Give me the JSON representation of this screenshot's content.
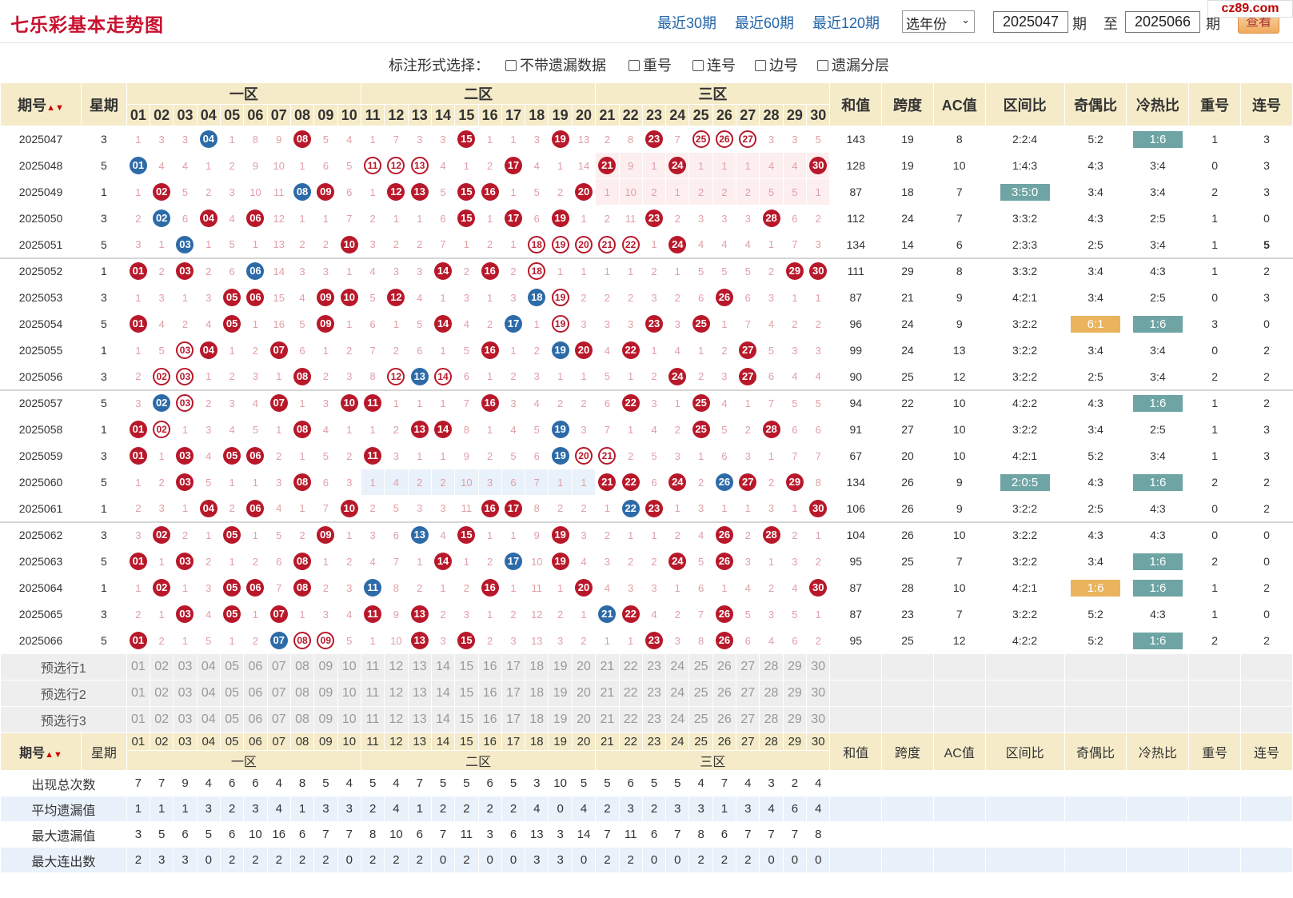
{
  "header": {
    "title": "七乐彩基本走势图",
    "links": [
      "最近30期",
      "最近60期",
      "最近120期"
    ],
    "year_select": "选年份",
    "from_value": "2025047",
    "from_unit": "期",
    "to_label": "至",
    "to_value": "2025066",
    "to_unit": "期",
    "query_button": "查看",
    "watermark": "cz89.com"
  },
  "options": {
    "label": "标注形式选择：",
    "items": [
      "不带遗漏数据",
      "重号",
      "连号",
      "边号",
      "遗漏分层"
    ]
  },
  "table": {
    "headers": {
      "issue": "期号",
      "weekday": "星期",
      "zones": [
        "一区",
        "二区",
        "三区"
      ],
      "sum": "和值",
      "span": "跨度",
      "ac": "AC值",
      "zone_ratio": "区间比",
      "odd_even": "奇偶比",
      "cold_hot": "冷热比",
      "repeat": "重号",
      "consecutive": "连号"
    },
    "numbers": [
      "01",
      "02",
      "03",
      "04",
      "05",
      "06",
      "07",
      "08",
      "09",
      "10",
      "11",
      "12",
      "13",
      "14",
      "15",
      "16",
      "17",
      "18",
      "19",
      "20",
      "21",
      "22",
      "23",
      "24",
      "25",
      "26",
      "27",
      "28",
      "29",
      "30"
    ],
    "rows": [
      {
        "issue": "2025047",
        "wd": "3",
        "cells": [
          "1",
          "3",
          "3",
          "B04",
          "1",
          "8",
          "9",
          "R08",
          "5",
          "4",
          "1",
          "7",
          "3",
          "3",
          "R15",
          "1",
          "1",
          "3",
          "R19",
          "13",
          "2",
          "8",
          "R23",
          "7",
          "O25",
          "O26",
          "O27",
          "3",
          "3",
          "5"
        ],
        "sum": "143",
        "span": "19",
        "ac": "8",
        "zr": "2:2:4",
        "oe": "5:2",
        "ch": "1:6",
        "ch_tag": "teal",
        "rep": "1",
        "con": "3"
      },
      {
        "issue": "2025048",
        "wd": "5",
        "cells": [
          "B01",
          "4",
          "4",
          "1",
          "2",
          "9",
          "10",
          "1",
          "6",
          "5",
          "O11",
          "O12",
          "O13",
          "4",
          "1",
          "2",
          "R17",
          "4",
          "1",
          "14",
          "R21",
          "9",
          "1",
          "R24",
          "1",
          "1",
          "1",
          "4",
          "4",
          "R30"
        ],
        "sum": "128",
        "span": "19",
        "ac": "10",
        "zr": "1:4:3",
        "oe": "4:3",
        "ch": "3:4",
        "rep": "0",
        "con": "3",
        "hl": "z3"
      },
      {
        "issue": "2025049",
        "wd": "1",
        "cells": [
          "1",
          "R02",
          "5",
          "2",
          "3",
          "10",
          "11",
          "B08",
          "R09",
          "6",
          "1",
          "R12",
          "R13",
          "5",
          "R15",
          "R16",
          "1",
          "5",
          "2",
          "R20",
          "1",
          "10",
          "2",
          "1",
          "2",
          "2",
          "2",
          "5",
          "5",
          "1"
        ],
        "sum": "87",
        "span": "18",
        "ac": "7",
        "zr": "3:5:0",
        "zr_tag": "teal",
        "oe": "3:4",
        "ch": "3:4",
        "rep": "2",
        "con": "3",
        "hl": "z3"
      },
      {
        "issue": "2025050",
        "wd": "3",
        "cells": [
          "2",
          "B02",
          "6",
          "R04",
          "4",
          "R06",
          "12",
          "1",
          "1",
          "7",
          "2",
          "1",
          "1",
          "6",
          "R15",
          "1",
          "R17",
          "6",
          "R19",
          "1",
          "2",
          "11",
          "R23",
          "2",
          "3",
          "3",
          "3",
          "R28",
          "6",
          "2"
        ],
        "sum": "112",
        "span": "24",
        "ac": "7",
        "zr": "3:3:2",
        "oe": "4:3",
        "ch": "2:5",
        "rep": "1",
        "con": "0"
      },
      {
        "issue": "2025051",
        "wd": "5",
        "cells": [
          "3",
          "1",
          "B03",
          "1",
          "5",
          "1",
          "13",
          "2",
          "2",
          "R10",
          "3",
          "2",
          "2",
          "7",
          "1",
          "2",
          "1",
          "O18",
          "O19",
          "O20",
          "O21",
          "O22",
          "1",
          "R24",
          "4",
          "4",
          "4",
          "1",
          "7",
          "3"
        ],
        "sum": "134",
        "span": "14",
        "ac": "6",
        "zr": "2:3:3",
        "oe": "2:5",
        "ch": "3:4",
        "rep": "1",
        "con": "5",
        "con_green": true
      },
      {
        "issue": "2025052",
        "wd": "1",
        "cells": [
          "R01",
          "2",
          "R03",
          "2",
          "6",
          "B06",
          "14",
          "3",
          "3",
          "1",
          "4",
          "3",
          "3",
          "R14",
          "2",
          "R16",
          "2",
          "O18",
          "1",
          "1",
          "1",
          "1",
          "2",
          "1",
          "5",
          "5",
          "5",
          "2",
          "R29",
          "R30"
        ],
        "sum": "111",
        "span": "29",
        "ac": "8",
        "zr": "3:3:2",
        "oe": "3:4",
        "ch": "4:3",
        "rep": "1",
        "con": "2",
        "sep": true
      },
      {
        "issue": "2025053",
        "wd": "3",
        "cells": [
          "1",
          "3",
          "1",
          "3",
          "R05",
          "R06",
          "15",
          "4",
          "R09",
          "R10",
          "5",
          "R12",
          "4",
          "1",
          "3",
          "1",
          "3",
          "B18",
          "O19",
          "2",
          "2",
          "2",
          "3",
          "2",
          "6",
          "R26",
          "6",
          "3",
          "1",
          "1"
        ],
        "sum": "87",
        "span": "21",
        "ac": "9",
        "zr": "4:2:1",
        "oe": "3:4",
        "ch": "2:5",
        "rep": "0",
        "con": "3"
      },
      {
        "issue": "2025054",
        "wd": "5",
        "cells": [
          "R01",
          "4",
          "2",
          "4",
          "R05",
          "1",
          "16",
          "5",
          "R09",
          "1",
          "6",
          "1",
          "5",
          "R14",
          "4",
          "2",
          "B17",
          "1",
          "O19",
          "3",
          "3",
          "3",
          "R23",
          "3",
          "R25",
          "1",
          "7",
          "4",
          "2",
          "2"
        ],
        "sum": "96",
        "span": "24",
        "ac": "9",
        "zr": "3:2:2",
        "oe": "6:1",
        "oe_tag": "orange",
        "ch": "1:6",
        "ch_tag": "teal",
        "rep": "3",
        "con": "0"
      },
      {
        "issue": "2025055",
        "wd": "1",
        "cells": [
          "1",
          "5",
          "O03",
          "R04",
          "1",
          "2",
          "R07",
          "6",
          "1",
          "2",
          "7",
          "2",
          "6",
          "1",
          "5",
          "R16",
          "1",
          "2",
          "B19",
          "R20",
          "4",
          "R22",
          "1",
          "4",
          "1",
          "2",
          "R27",
          "5",
          "3",
          "3"
        ],
        "sum": "99",
        "span": "24",
        "ac": "13",
        "zr": "3:2:2",
        "oe": "3:4",
        "ch": "3:4",
        "rep": "0",
        "con": "2"
      },
      {
        "issue": "2025056",
        "wd": "3",
        "cells": [
          "2",
          "O02",
          "O03",
          "1",
          "2",
          "3",
          "1",
          "R08",
          "2",
          "3",
          "8",
          "O12",
          "B13",
          "O14",
          "6",
          "1",
          "2",
          "3",
          "1",
          "1",
          "5",
          "1",
          "2",
          "R24",
          "2",
          "3",
          "R27",
          "6",
          "4",
          "4"
        ],
        "sum": "90",
        "span": "25",
        "ac": "12",
        "zr": "3:2:2",
        "oe": "2:5",
        "ch": "3:4",
        "rep": "2",
        "con": "2"
      },
      {
        "issue": "2025057",
        "wd": "5",
        "cells": [
          "3",
          "B02",
          "O03",
          "2",
          "3",
          "4",
          "R07",
          "1",
          "3",
          "R10",
          "R11",
          "1",
          "1",
          "1",
          "7",
          "R16",
          "3",
          "4",
          "2",
          "2",
          "6",
          "R22",
          "3",
          "1",
          "R25",
          "4",
          "1",
          "7",
          "5",
          "5"
        ],
        "sum": "94",
        "span": "22",
        "ac": "10",
        "zr": "4:2:2",
        "oe": "4:3",
        "ch": "1:6",
        "ch_tag": "teal",
        "rep": "1",
        "con": "2",
        "sep": true
      },
      {
        "issue": "2025058",
        "wd": "1",
        "cells": [
          "R01",
          "O02",
          "1",
          "3",
          "4",
          "5",
          "1",
          "R08",
          "4",
          "1",
          "1",
          "2",
          "R13",
          "R14",
          "8",
          "1",
          "4",
          "5",
          "B19",
          "3",
          "7",
          "1",
          "4",
          "2",
          "R25",
          "5",
          "2",
          "R28",
          "6",
          "6"
        ],
        "sum": "91",
        "span": "27",
        "ac": "10",
        "zr": "3:2:2",
        "oe": "3:4",
        "ch": "2:5",
        "rep": "1",
        "con": "3"
      },
      {
        "issue": "2025059",
        "wd": "3",
        "cells": [
          "R01",
          "1",
          "R03",
          "4",
          "R05",
          "R06",
          "2",
          "1",
          "5",
          "2",
          "R11",
          "3",
          "1",
          "1",
          "9",
          "2",
          "5",
          "6",
          "B19",
          "O20",
          "O21",
          "2",
          "5",
          "3",
          "1",
          "6",
          "3",
          "1",
          "7",
          "7"
        ],
        "sum": "67",
        "span": "20",
        "ac": "10",
        "zr": "4:2:1",
        "oe": "5:2",
        "ch": "3:4",
        "rep": "1",
        "con": "3"
      },
      {
        "issue": "2025060",
        "wd": "5",
        "cells": [
          "1",
          "2",
          "R03",
          "5",
          "1",
          "1",
          "3",
          "R08",
          "6",
          "3",
          "1",
          "4",
          "2",
          "2",
          "10",
          "3",
          "6",
          "7",
          "1",
          "1",
          "R21",
          "R22",
          "6",
          "R24",
          "2",
          "B26",
          "R27",
          "2",
          "R29",
          "8"
        ],
        "sum": "134",
        "span": "26",
        "ac": "9",
        "zr": "2:0:5",
        "zr_tag": "teal",
        "oe": "4:3",
        "ch": "1:6",
        "ch_tag": "teal",
        "rep": "2",
        "con": "2",
        "hl": "z2"
      },
      {
        "issue": "2025061",
        "wd": "1",
        "cells": [
          "2",
          "3",
          "1",
          "R04",
          "2",
          "R06",
          "4",
          "1",
          "7",
          "R10",
          "2",
          "5",
          "3",
          "3",
          "11",
          "R16",
          "R17",
          "8",
          "2",
          "2",
          "1",
          "B22",
          "R23",
          "1",
          "3",
          "1",
          "1",
          "3",
          "1",
          "R30"
        ],
        "sum": "106",
        "span": "26",
        "ac": "9",
        "zr": "3:2:2",
        "oe": "2:5",
        "ch": "4:3",
        "rep": "0",
        "con": "2"
      },
      {
        "issue": "2025062",
        "wd": "3",
        "cells": [
          "3",
          "R02",
          "2",
          "1",
          "R05",
          "1",
          "5",
          "2",
          "R09",
          "1",
          "3",
          "6",
          "B13",
          "4",
          "R15",
          "1",
          "1",
          "9",
          "R19",
          "3",
          "2",
          "1",
          "1",
          "2",
          "4",
          "R26",
          "2",
          "R28",
          "2",
          "1"
        ],
        "sum": "104",
        "span": "26",
        "ac": "10",
        "zr": "3:2:2",
        "oe": "4:3",
        "ch": "4:3",
        "rep": "0",
        "con": "0",
        "sep": true
      },
      {
        "issue": "2025063",
        "wd": "5",
        "cells": [
          "R01",
          "1",
          "R03",
          "2",
          "1",
          "2",
          "6",
          "R08",
          "1",
          "2",
          "4",
          "7",
          "1",
          "R14",
          "1",
          "2",
          "B17",
          "10",
          "R19",
          "4",
          "3",
          "2",
          "2",
          "R24",
          "5",
          "R26",
          "3",
          "1",
          "3",
          "2"
        ],
        "sum": "95",
        "span": "25",
        "ac": "7",
        "zr": "3:2:2",
        "oe": "3:4",
        "ch": "1:6",
        "ch_tag": "teal",
        "rep": "2",
        "con": "0"
      },
      {
        "issue": "2025064",
        "wd": "1",
        "cells": [
          "1",
          "R02",
          "1",
          "3",
          "R05",
          "R06",
          "7",
          "R08",
          "2",
          "3",
          "B11",
          "8",
          "2",
          "1",
          "2",
          "R16",
          "1",
          "11",
          "1",
          "R20",
          "4",
          "3",
          "3",
          "1",
          "6",
          "1",
          "4",
          "2",
          "4",
          "R30"
        ],
        "sum": "87",
        "span": "28",
        "ac": "10",
        "zr": "4:2:1",
        "oe": "1:6",
        "oe_tag": "orange",
        "ch": "1:6",
        "ch_tag": "teal",
        "rep": "1",
        "con": "2"
      },
      {
        "issue": "2025065",
        "wd": "3",
        "cells": [
          "2",
          "1",
          "R03",
          "4",
          "R05",
          "1",
          "R07",
          "1",
          "3",
          "4",
          "R11",
          "9",
          "R13",
          "2",
          "3",
          "1",
          "2",
          "12",
          "2",
          "1",
          "B21",
          "R22",
          "4",
          "2",
          "7",
          "R26",
          "5",
          "3",
          "5",
          "1"
        ],
        "sum": "87",
        "span": "23",
        "ac": "7",
        "zr": "3:2:2",
        "oe": "5:2",
        "ch": "4:3",
        "rep": "1",
        "con": "0"
      },
      {
        "issue": "2025066",
        "wd": "5",
        "cells": [
          "R01",
          "2",
          "1",
          "5",
          "1",
          "2",
          "B07",
          "O08",
          "O09",
          "5",
          "1",
          "10",
          "R13",
          "3",
          "R15",
          "2",
          "3",
          "13",
          "3",
          "2",
          "1",
          "1",
          "R23",
          "3",
          "8",
          "R26",
          "6",
          "4",
          "6",
          "2"
        ],
        "sum": "95",
        "span": "25",
        "ac": "12",
        "zr": "4:2:2",
        "oe": "5:2",
        "ch": "1:6",
        "ch_tag": "teal",
        "rep": "2",
        "con": "2"
      }
    ],
    "preselect": [
      "预选行1",
      "预选行2",
      "预选行3"
    ],
    "stats": [
      {
        "label": "出现总次数",
        "values": [
          "7",
          "7",
          "9",
          "4",
          "6",
          "6",
          "4",
          "8",
          "5",
          "4",
          "5",
          "4",
          "7",
          "5",
          "5",
          "6",
          "5",
          "3",
          "10",
          "5",
          "5",
          "6",
          "5",
          "5",
          "4",
          "7",
          "4",
          "3",
          "2",
          "4"
        ]
      },
      {
        "label": "平均遗漏值",
        "values": [
          "1",
          "1",
          "1",
          "3",
          "2",
          "3",
          "4",
          "1",
          "3",
          "3",
          "2",
          "4",
          "1",
          "2",
          "2",
          "2",
          "2",
          "4",
          "0",
          "4",
          "2",
          "3",
          "2",
          "3",
          "3",
          "1",
          "3",
          "4",
          "6",
          "4"
        ]
      },
      {
        "label": "最大遗漏值",
        "values": [
          "3",
          "5",
          "6",
          "5",
          "6",
          "10",
          "16",
          "6",
          "7",
          "7",
          "8",
          "10",
          "6",
          "7",
          "11",
          "3",
          "6",
          "13",
          "3",
          "14",
          "7",
          "11",
          "6",
          "7",
          "8",
          "6",
          "7",
          "7",
          "7",
          "8"
        ]
      },
      {
        "label": "最大连出数",
        "values": [
          "2",
          "3",
          "3",
          "0",
          "2",
          "2",
          "2",
          "2",
          "2",
          "0",
          "2",
          "2",
          "2",
          "0",
          "2",
          "0",
          "0",
          "3",
          "3",
          "0",
          "2",
          "2",
          "0",
          "0",
          "2",
          "2",
          "2",
          "0",
          "0",
          "0"
        ]
      }
    ]
  },
  "colors": {
    "title": "#c8102e",
    "ball_red": "#b8182a",
    "ball_blue": "#2c6aa8",
    "header_bg": "#f5ebc9",
    "tag_teal": "#6fa4a4",
    "tag_orange": "#eab45d",
    "link": "#2366a8"
  }
}
